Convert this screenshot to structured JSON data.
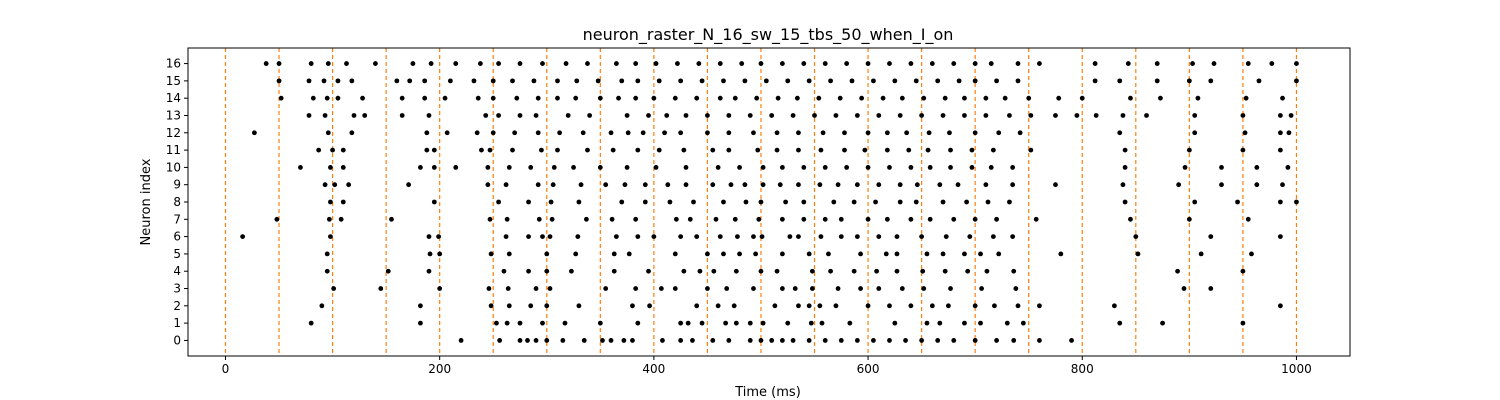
{
  "chart_data": {
    "type": "scatter",
    "title": "neuron_raster_N_16_sw_15_tbs_50_when_I_on",
    "xlabel": "Time (ms)",
    "ylabel": "Neuron index",
    "xlim": [
      -35,
      1050
    ],
    "ylim": [
      -0.9,
      16.9
    ],
    "xticks": [
      0,
      200,
      400,
      600,
      800,
      1000
    ],
    "yticks": [
      0,
      1,
      2,
      3,
      4,
      5,
      6,
      7,
      8,
      9,
      10,
      11,
      12,
      13,
      14,
      15,
      16
    ],
    "grid": false,
    "marker_color": "#000000",
    "vline_color": "#ff7f0e",
    "vline_style": "dashed",
    "vlines": [
      0,
      50,
      100,
      150,
      200,
      250,
      300,
      350,
      400,
      450,
      500,
      550,
      600,
      650,
      700,
      750,
      800,
      850,
      900,
      950,
      1000
    ],
    "series": [
      {
        "spikes": [
          {
            "neuron": 0,
            "times": [
              220,
              256,
              275,
              282,
              290,
              300,
              315,
              335,
              352,
              360,
              372,
              380,
              408,
              425,
              436,
              455,
              470,
              490,
              500,
              510,
              520,
              530,
              545,
              560,
              575,
              590,
              605,
              620,
              635,
              650,
              665,
              680,
              700,
              720,
              736,
              760,
              790
            ]
          },
          {
            "neuron": 1,
            "times": [
              80,
              182,
              253,
              263,
              275,
              296,
              317,
              350,
              385,
              425,
              432,
              445,
              467,
              477,
              490,
              502,
              525,
              547,
              557,
              583,
              625,
              655,
              667,
              690,
              705,
              730,
              745,
              835,
              875,
              950
            ]
          },
          {
            "neuron": 2,
            "times": [
              90,
              182,
              248,
              265,
              285,
              300,
              330,
              380,
              396,
              440,
              460,
              475,
              513,
              535,
              545,
              555,
              570,
              600,
              620,
              640,
              660,
              675,
              700,
              718,
              740,
              760,
              830,
              985
            ]
          },
          {
            "neuron": 3,
            "times": [
              101,
              145,
              200,
              246,
              264,
              290,
              303,
              355,
              383,
              407,
              420,
              450,
              468,
              493,
              520,
              532,
              548,
              572,
              593,
              610,
              632,
              652,
              677,
              706,
              738,
              895,
              920
            ]
          },
          {
            "neuron": 4,
            "times": [
              95,
              152,
              190,
              260,
              283,
              300,
              323,
              363,
              395,
              428,
              443,
              456,
              477,
              500,
              515,
              548,
              565,
              587,
              608,
              627,
              651,
              672,
              693,
              711,
              736,
              889,
              950
            ]
          },
          {
            "neuron": 5,
            "times": [
              95,
              191,
              200,
              248,
              265,
              300,
              327,
              363,
              377,
              420,
              450,
              465,
              480,
              495,
              520,
              545,
              563,
              593,
              617,
              627,
              655,
              670,
              690,
              705,
              722,
              780,
              852,
              911,
              958
            ]
          },
          {
            "neuron": 6,
            "times": [
              16,
              98,
              190,
              199,
              262,
              283,
              296,
              303,
              329,
              365,
              385,
              400,
              425,
              440,
              462,
              478,
              493,
              501,
              527,
              535,
              556,
              575,
              590,
              610,
              627,
              650,
              673,
              695,
              717,
              735,
              850,
              920,
              985
            ]
          },
          {
            "neuron": 7,
            "times": [
              48,
              97,
              108,
              155,
              247,
              263,
              293,
              305,
              337,
              361,
              383,
              421,
              434,
              458,
              476,
              498,
              520,
              540,
              560,
              575,
              600,
              618,
              640,
              658,
              680,
              700,
              720,
              757,
              845,
              900,
              955
            ]
          },
          {
            "neuron": 8,
            "times": [
              98,
              110,
              195,
              255,
              283,
              304,
              330,
              370,
              392,
              415,
              437,
              465,
              486,
              500,
              523,
              540,
              568,
              587,
              607,
              630,
              645,
              670,
              692,
              712,
              732,
              840,
              905,
              945,
              985,
              1000
            ]
          },
          {
            "neuron": 9,
            "times": [
              93,
              102,
              115,
              171,
              245,
              262,
              292,
              306,
              332,
              355,
              373,
              392,
              413,
              430,
              455,
              472,
              485,
              502,
              518,
              535,
              555,
              572,
              590,
              610,
              630,
              646,
              667,
              684,
              710,
              735,
              775,
              838,
              890,
              930,
              963,
              987
            ]
          },
          {
            "neuron": 10,
            "times": [
              70,
              98,
              110,
              182,
              195,
              215,
              245,
              265,
              285,
              307,
              325,
              350,
              375,
              402,
              430,
              460,
              480,
              502,
              520,
              540,
              560,
              580,
              600,
              620,
              640,
              658,
              677,
              697,
              715,
              735,
              840,
              896,
              930,
              963,
              992
            ]
          },
          {
            "neuron": 11,
            "times": [
              87,
              100,
              110,
              188,
              195,
              239,
              247,
              268,
              295,
              310,
              338,
              362,
              385,
              405,
              428,
              455,
              470,
              497,
              515,
              535,
              556,
              578,
              597,
              618,
              638,
              656,
              677,
              697,
              717,
              752,
              840,
              900,
              950,
              985
            ]
          },
          {
            "neuron": 12,
            "times": [
              27,
              96,
              118,
              188,
              207,
              235,
              250,
              270,
              292,
              312,
              334,
              360,
              376,
              390,
              410,
              425,
              450,
              470,
              493,
              515,
              535,
              558,
              578,
              600,
              618,
              636,
              657,
              676,
              700,
              722,
              742,
              835,
              905,
              952,
              985,
              993
            ]
          },
          {
            "neuron": 13,
            "times": [
              78,
              93,
              120,
              130,
              165,
              190,
              243,
              255,
              275,
              290,
              320,
              340,
              375,
              395,
              412,
              430,
              450,
              470,
              490,
              510,
              530,
              550,
              570,
              590,
              610,
              630,
              650,
              670,
              690,
              710,
              732,
              752,
              775,
              795,
              813,
              838,
              860,
              905,
              950,
              985,
              995
            ]
          },
          {
            "neuron": 14,
            "times": [
              52,
              82,
              95,
              105,
              128,
              165,
              186,
              205,
              236,
              250,
              272,
              292,
              310,
              327,
              350,
              367,
              383,
              400,
              420,
              440,
              462,
              476,
              496,
              516,
              534,
              554,
              574,
              594,
              614,
              632,
              652,
              672,
              690,
              710,
              728,
              750,
              778,
              800,
              845,
              873,
              908,
              953,
              987
            ]
          },
          {
            "neuron": 15,
            "times": [
              50,
              78,
              92,
              105,
              118,
              160,
              172,
              186,
              210,
              232,
              250,
              268,
              288,
              310,
              328,
              348,
              370,
              385,
              405,
              425,
              445,
              465,
              485,
              505,
              525,
              545,
              565,
              585,
              605,
              625,
              645,
              665,
              685,
              700,
              720,
              740,
              812,
              835,
              870,
              900,
              920,
              965,
              1000
            ]
          },
          {
            "neuron": 16,
            "times": [
              38,
              50,
              80,
              96,
              113,
              140,
              175,
              192,
              215,
              238,
              255,
              275,
              296,
              318,
              338,
              365,
              383,
              402,
              422,
              442,
              462,
              482,
              500,
              520,
              540,
              560,
              580,
              600,
              620,
              640,
              660,
              680,
              700,
              715,
              740,
              760,
              812,
              843,
              870,
              903,
              923,
              955,
              977,
              1000
            ]
          }
        ]
      }
    ]
  }
}
